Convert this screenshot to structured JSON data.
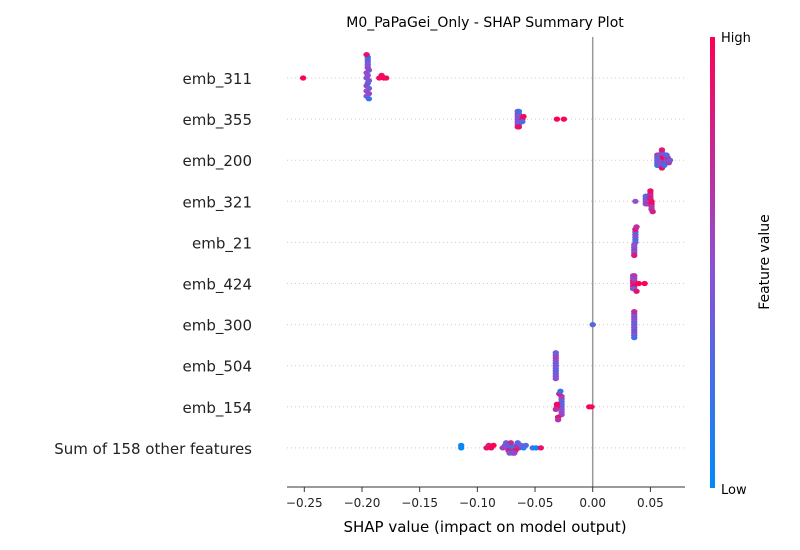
{
  "chart_data": {
    "type": "scatter",
    "title": "M0_PaPaGei_Only - SHAP Summary Plot",
    "xlabel": "SHAP value (impact on model output)",
    "xlim": [
      -0.265,
      0.08
    ],
    "xticks": [
      -0.25,
      -0.2,
      -0.15,
      -0.1,
      -0.05,
      0.0,
      0.05
    ],
    "xtick_labels": [
      "−0.25",
      "−0.20",
      "−0.15",
      "−0.10",
      "−0.05",
      "0.00",
      "0.05"
    ],
    "zero_line": 0,
    "colorbar": {
      "label": "Feature value",
      "high": "High",
      "low": "Low",
      "high_color": "#ff0052",
      "low_color": "#008bfb"
    },
    "features": [
      {
        "name": "emb_311",
        "points": [
          {
            "x": -0.251,
            "c": 1.0
          },
          {
            "x": -0.196,
            "c": 0.45
          },
          {
            "x": -0.195,
            "c": 0.5
          },
          {
            "x": -0.194,
            "c": 0.48
          },
          {
            "x": -0.196,
            "c": 0.52
          },
          {
            "x": -0.195,
            "c": 0.3
          },
          {
            "x": -0.194,
            "c": 0.4
          },
          {
            "x": -0.196,
            "c": 0.55
          },
          {
            "x": -0.195,
            "c": 0.6
          },
          {
            "x": -0.194,
            "c": 0.35
          },
          {
            "x": -0.195,
            "c": 0.45
          },
          {
            "x": -0.196,
            "c": 0.5
          },
          {
            "x": -0.195,
            "c": 0.42
          },
          {
            "x": -0.194,
            "c": 0.58
          },
          {
            "x": -0.195,
            "c": 0.38
          },
          {
            "x": -0.196,
            "c": 0.47
          },
          {
            "x": -0.195,
            "c": 0.15
          },
          {
            "x": -0.194,
            "c": 0.2
          },
          {
            "x": -0.196,
            "c": 0.9
          },
          {
            "x": -0.185,
            "c": 0.95
          },
          {
            "x": -0.183,
            "c": 0.9
          },
          {
            "x": -0.181,
            "c": 1.0
          },
          {
            "x": -0.179,
            "c": 0.95
          }
        ]
      },
      {
        "name": "emb_355",
        "points": [
          {
            "x": -0.065,
            "c": 0.5
          },
          {
            "x": -0.064,
            "c": 0.45
          },
          {
            "x": -0.065,
            "c": 0.55
          },
          {
            "x": -0.064,
            "c": 0.4
          },
          {
            "x": -0.065,
            "c": 0.6
          },
          {
            "x": -0.064,
            "c": 0.5
          },
          {
            "x": -0.065,
            "c": 0.35
          },
          {
            "x": -0.064,
            "c": 0.48
          },
          {
            "x": -0.065,
            "c": 0.52
          },
          {
            "x": -0.064,
            "c": 0.3
          },
          {
            "x": -0.065,
            "c": 0.58
          },
          {
            "x": -0.064,
            "c": 0.2
          },
          {
            "x": -0.065,
            "c": 0.85
          },
          {
            "x": -0.064,
            "c": 0.9
          },
          {
            "x": -0.061,
            "c": 0.9
          },
          {
            "x": -0.06,
            "c": 0.95
          },
          {
            "x": -0.061,
            "c": 0.25
          },
          {
            "x": -0.031,
            "c": 1.0
          },
          {
            "x": -0.025,
            "c": 1.0
          }
        ]
      },
      {
        "name": "emb_200",
        "points": [
          {
            "x": 0.056,
            "c": 0.5
          },
          {
            "x": 0.056,
            "c": 0.35
          },
          {
            "x": 0.056,
            "c": 0.25
          },
          {
            "x": 0.057,
            "c": 0.4
          },
          {
            "x": 0.056,
            "c": 0.6
          },
          {
            "x": 0.057,
            "c": 0.3
          },
          {
            "x": 0.056,
            "c": 0.15
          },
          {
            "x": 0.057,
            "c": 0.45
          },
          {
            "x": 0.058,
            "c": 0.55
          },
          {
            "x": 0.059,
            "c": 0.5
          },
          {
            "x": 0.06,
            "c": 0.4
          },
          {
            "x": 0.061,
            "c": 0.45
          },
          {
            "x": 0.06,
            "c": 0.9
          },
          {
            "x": 0.061,
            "c": 0.95
          },
          {
            "x": 0.06,
            "c": 0.85
          },
          {
            "x": 0.062,
            "c": 0.6
          },
          {
            "x": 0.063,
            "c": 0.55
          },
          {
            "x": 0.064,
            "c": 0.5
          },
          {
            "x": 0.065,
            "c": 0.7
          },
          {
            "x": 0.066,
            "c": 0.65
          },
          {
            "x": 0.067,
            "c": 0.4
          },
          {
            "x": 0.064,
            "c": 0.3
          },
          {
            "x": 0.062,
            "c": 0.2
          }
        ]
      },
      {
        "name": "emb_321",
        "points": [
          {
            "x": 0.037,
            "c": 0.5
          },
          {
            "x": 0.046,
            "c": 0.45
          },
          {
            "x": 0.046,
            "c": 0.35
          },
          {
            "x": 0.047,
            "c": 0.5
          },
          {
            "x": 0.046,
            "c": 0.4
          },
          {
            "x": 0.047,
            "c": 0.55
          },
          {
            "x": 0.046,
            "c": 0.3
          },
          {
            "x": 0.047,
            "c": 0.6
          },
          {
            "x": 0.051,
            "c": 0.9
          },
          {
            "x": 0.05,
            "c": 0.85
          },
          {
            "x": 0.051,
            "c": 0.95
          },
          {
            "x": 0.05,
            "c": 0.8
          },
          {
            "x": 0.051,
            "c": 0.7
          },
          {
            "x": 0.05,
            "c": 0.75
          },
          {
            "x": 0.051,
            "c": 0.65
          },
          {
            "x": 0.05,
            "c": 0.9
          },
          {
            "x": 0.052,
            "c": 0.8
          }
        ]
      },
      {
        "name": "emb_21",
        "points": [
          {
            "x": 0.037,
            "c": 0.4
          },
          {
            "x": 0.037,
            "c": 0.3
          },
          {
            "x": 0.036,
            "c": 0.5
          },
          {
            "x": 0.037,
            "c": 0.35
          },
          {
            "x": 0.036,
            "c": 0.45
          },
          {
            "x": 0.037,
            "c": 0.55
          },
          {
            "x": 0.036,
            "c": 0.6
          },
          {
            "x": 0.037,
            "c": 0.25
          },
          {
            "x": 0.036,
            "c": 0.4
          },
          {
            "x": 0.037,
            "c": 0.9
          },
          {
            "x": 0.036,
            "c": 0.85
          },
          {
            "x": 0.038,
            "c": 0.7
          }
        ]
      },
      {
        "name": "emb_424",
        "points": [
          {
            "x": 0.035,
            "c": 0.8
          },
          {
            "x": 0.036,
            "c": 0.85
          },
          {
            "x": 0.035,
            "c": 0.9
          },
          {
            "x": 0.036,
            "c": 0.75
          },
          {
            "x": 0.035,
            "c": 0.7
          },
          {
            "x": 0.036,
            "c": 0.95
          },
          {
            "x": 0.035,
            "c": 0.6
          },
          {
            "x": 0.036,
            "c": 0.5
          },
          {
            "x": 0.035,
            "c": 0.55
          },
          {
            "x": 0.036,
            "c": 0.4
          },
          {
            "x": 0.035,
            "c": 0.45
          },
          {
            "x": 0.036,
            "c": 0.65
          },
          {
            "x": 0.038,
            "c": 0.9
          },
          {
            "x": 0.04,
            "c": 1.0
          },
          {
            "x": 0.045,
            "c": 1.0
          }
        ]
      },
      {
        "name": "emb_300",
        "points": [
          {
            "x": 0.0,
            "c": 0.3
          },
          {
            "x": 0.036,
            "c": 0.4
          },
          {
            "x": 0.036,
            "c": 0.35
          },
          {
            "x": 0.036,
            "c": 0.5
          },
          {
            "x": 0.036,
            "c": 0.45
          },
          {
            "x": 0.036,
            "c": 0.3
          },
          {
            "x": 0.036,
            "c": 0.55
          },
          {
            "x": 0.036,
            "c": 0.6
          },
          {
            "x": 0.036,
            "c": 0.4
          },
          {
            "x": 0.036,
            "c": 0.35
          },
          {
            "x": 0.036,
            "c": 0.7
          },
          {
            "x": 0.036,
            "c": 0.25
          }
        ]
      },
      {
        "name": "emb_504",
        "points": [
          {
            "x": -0.032,
            "c": 0.4
          },
          {
            "x": -0.032,
            "c": 0.35
          },
          {
            "x": -0.032,
            "c": 0.45
          },
          {
            "x": -0.032,
            "c": 0.5
          },
          {
            "x": -0.032,
            "c": 0.3
          },
          {
            "x": -0.032,
            "c": 0.55
          },
          {
            "x": -0.032,
            "c": 0.4
          },
          {
            "x": -0.032,
            "c": 0.6
          },
          {
            "x": -0.032,
            "c": 0.45
          },
          {
            "x": -0.032,
            "c": 0.35
          },
          {
            "x": -0.032,
            "c": 0.5
          }
        ]
      },
      {
        "name": "emb_154",
        "points": [
          {
            "x": -0.027,
            "c": 0.4
          },
          {
            "x": -0.027,
            "c": 0.35
          },
          {
            "x": -0.027,
            "c": 0.45
          },
          {
            "x": -0.027,
            "c": 0.3
          },
          {
            "x": -0.027,
            "c": 0.5
          },
          {
            "x": -0.027,
            "c": 0.4
          },
          {
            "x": -0.027,
            "c": 0.55
          },
          {
            "x": -0.027,
            "c": 0.6
          },
          {
            "x": -0.031,
            "c": 0.85
          },
          {
            "x": -0.03,
            "c": 0.9
          },
          {
            "x": -0.031,
            "c": 0.95
          },
          {
            "x": -0.029,
            "c": 0.8
          },
          {
            "x": -0.032,
            "c": 0.7
          },
          {
            "x": -0.03,
            "c": 0.65
          },
          {
            "x": -0.028,
            "c": 0.2
          },
          {
            "x": -0.003,
            "c": 1.0
          },
          {
            "x": -0.001,
            "c": 0.95
          }
        ]
      },
      {
        "name": "Sum of 158 other features",
        "points": [
          {
            "x": -0.114,
            "c": 0.0
          },
          {
            "x": -0.114,
            "c": 0.05
          },
          {
            "x": -0.092,
            "c": 0.9
          },
          {
            "x": -0.09,
            "c": 0.85
          },
          {
            "x": -0.088,
            "c": 0.95
          },
          {
            "x": -0.086,
            "c": 1.0
          },
          {
            "x": -0.078,
            "c": 0.6
          },
          {
            "x": -0.076,
            "c": 0.5
          },
          {
            "x": -0.074,
            "c": 0.45
          },
          {
            "x": -0.072,
            "c": 0.55
          },
          {
            "x": -0.07,
            "c": 0.3
          },
          {
            "x": -0.068,
            "c": 0.4
          },
          {
            "x": -0.066,
            "c": 0.65
          },
          {
            "x": -0.064,
            "c": 0.7
          },
          {
            "x": -0.071,
            "c": 0.2
          },
          {
            "x": -0.069,
            "c": 0.15
          },
          {
            "x": -0.073,
            "c": 0.8
          },
          {
            "x": -0.067,
            "c": 0.85
          },
          {
            "x": -0.075,
            "c": 0.35
          },
          {
            "x": -0.065,
            "c": 0.25
          },
          {
            "x": -0.062,
            "c": 0.5
          },
          {
            "x": -0.06,
            "c": 0.1
          },
          {
            "x": -0.058,
            "c": 0.3
          },
          {
            "x": -0.052,
            "c": 0.2
          },
          {
            "x": -0.049,
            "c": 0.05
          },
          {
            "x": -0.045,
            "c": 0.9
          },
          {
            "x": -0.071,
            "c": 0.75
          },
          {
            "x": -0.069,
            "c": 0.6
          },
          {
            "x": -0.072,
            "c": 0.4
          },
          {
            "x": -0.068,
            "c": 0.55
          }
        ]
      }
    ]
  }
}
